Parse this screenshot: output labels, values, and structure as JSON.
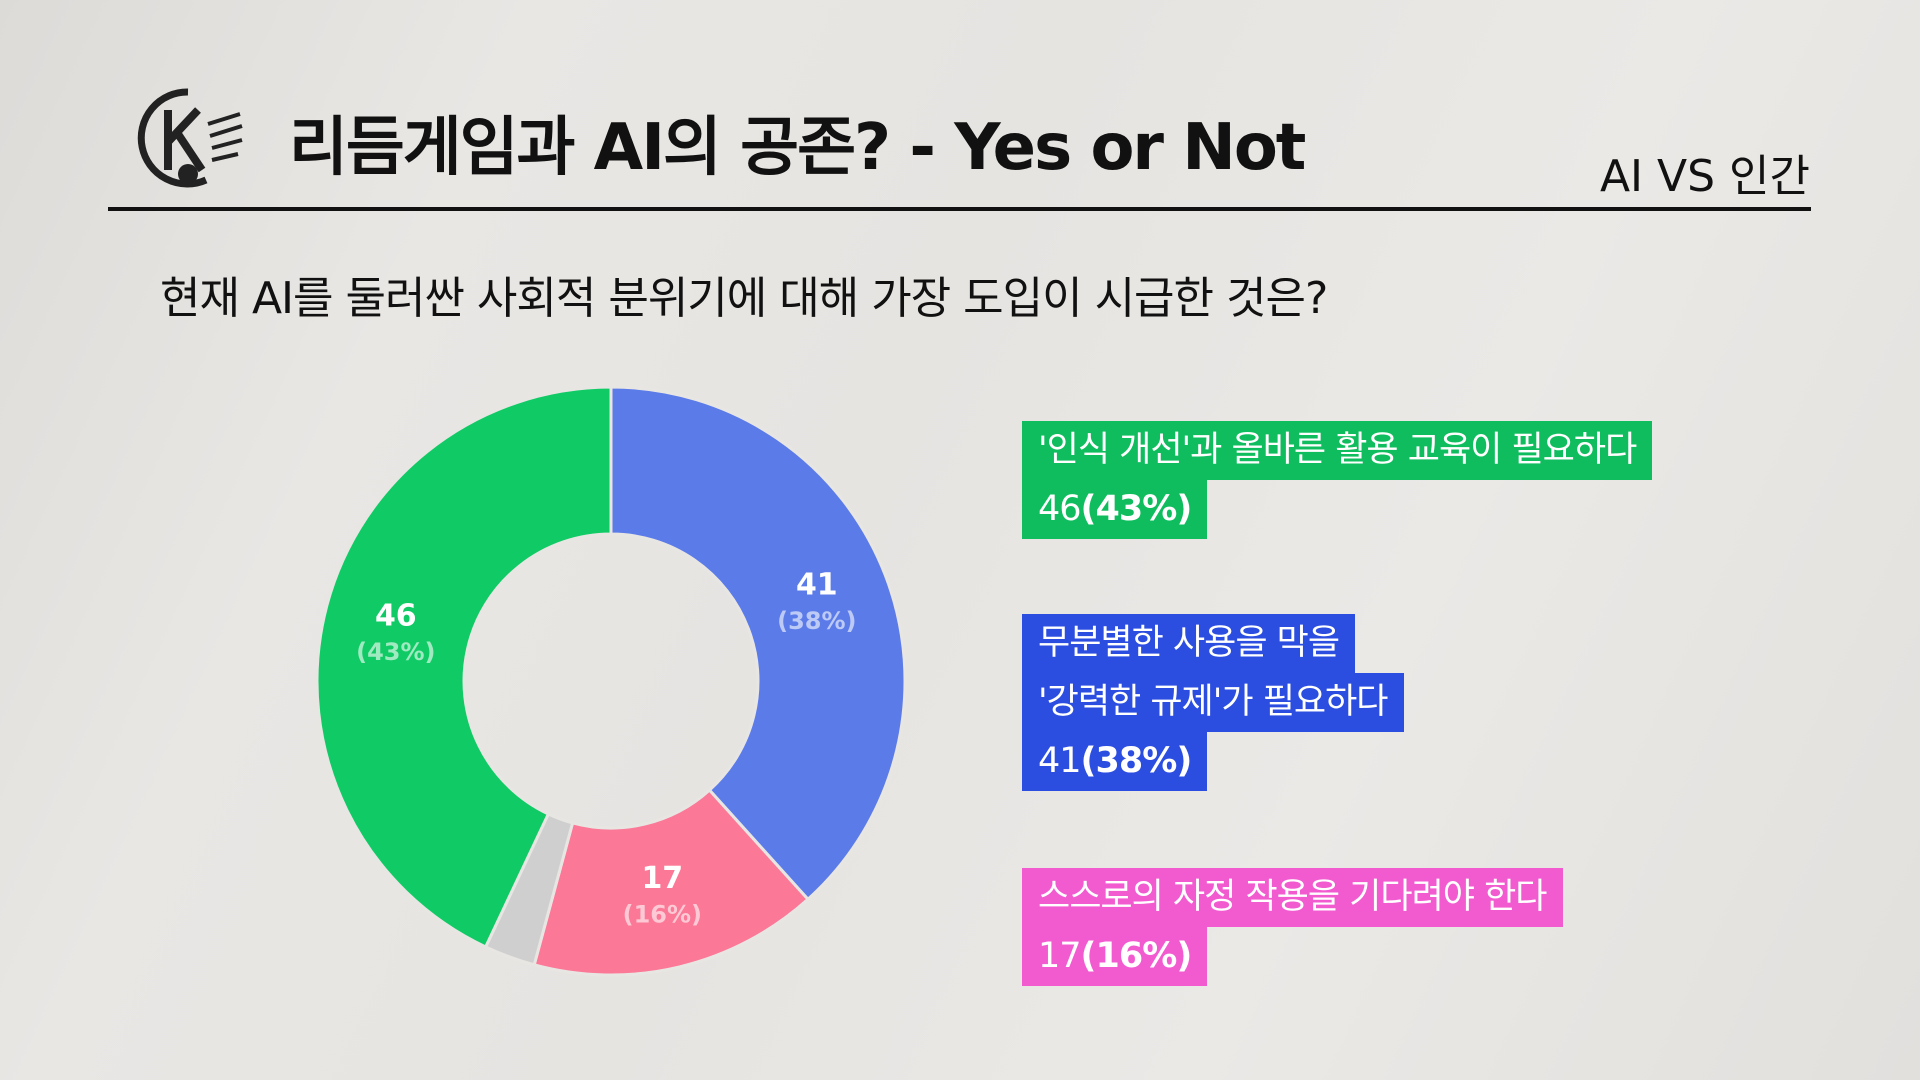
{
  "header": {
    "title": "리듬게임과 AI의 공존? - Yes or Not",
    "tag": "AI VS 인간"
  },
  "question": "현재 AI를 둘러싼 사회적 분위기에 대해 가장 도입이 시급한 것은?",
  "chart_data": {
    "type": "donut",
    "categories": [
      [
        "무분별한 사용을 막을",
        "'강력한 규제'가 필요하다"
      ],
      [
        "스스로의 자정 작용을 기다려야 한다"
      ],
      null,
      [
        "'인식 개선'과 올바른 활용 교육이 필요하다"
      ]
    ],
    "values": [
      41,
      17,
      3,
      46
    ],
    "percent_labels": [
      "(38%)",
      "(16%)",
      null,
      "(43%)"
    ],
    "colors": [
      "#5b7be9",
      "#fb7897",
      "#cfcfcf",
      "#10cb65"
    ],
    "legend_colors": [
      "#2b4de0",
      "#f25bd0",
      null,
      "#0fbd5e"
    ]
  }
}
